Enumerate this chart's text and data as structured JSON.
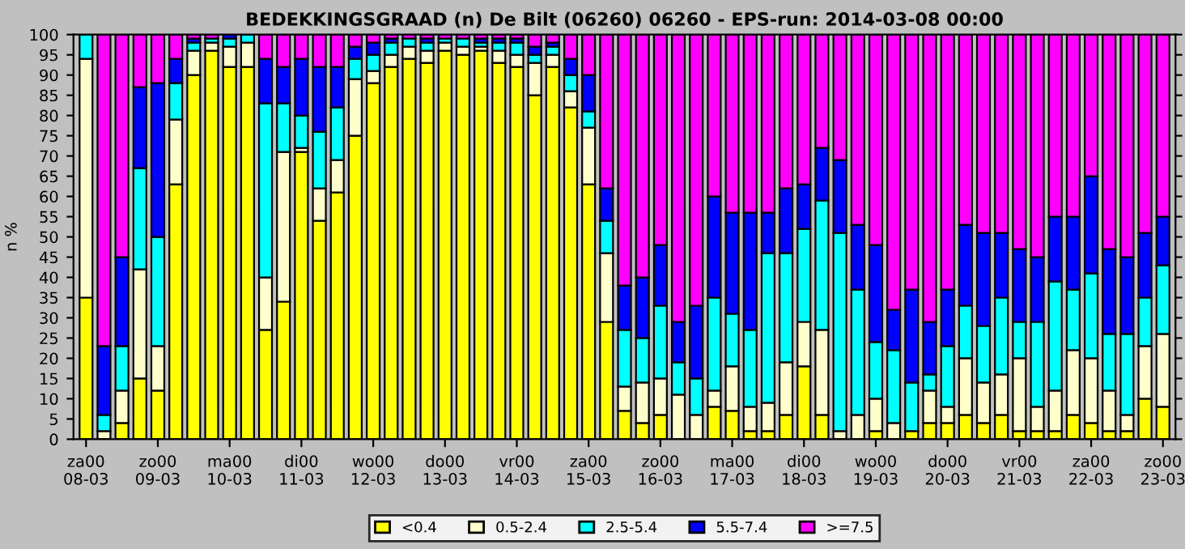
{
  "chart_data": {
    "type": "bar",
    "title": "BEDEKKINGSGRAAD (n) De Bilt (06260) 06260 - EPS-run: 2014-03-08 00:00",
    "ylabel": "n %",
    "stacked": true,
    "legend": "bottom",
    "categories": [
      "za00\n08-03",
      null,
      null,
      null,
      "zo00\n09-03",
      null,
      null,
      null,
      "ma00\n10-03",
      null,
      null,
      null,
      "di00\n11-03",
      null,
      null,
      null,
      "wo00\n12-03",
      null,
      null,
      null,
      "do00\n13-03",
      null,
      null,
      null,
      "vr00\n14-03",
      null,
      null,
      null,
      "za00\n15-03",
      null,
      null,
      null,
      "zo00\n16-03",
      null,
      null,
      null,
      "ma00\n17-03",
      null,
      null,
      null,
      "di00\n18-03",
      null,
      null,
      null,
      "wo00\n19-03",
      null,
      null,
      null,
      "do00\n20-03",
      null,
      null,
      null,
      "vr00\n21-03",
      null,
      null,
      null,
      "za00\n22-03",
      null,
      null,
      null,
      "zo00\n23-03"
    ],
    "ylim": [
      0,
      100
    ],
    "yticks": [
      0,
      5,
      10,
      15,
      20,
      25,
      30,
      35,
      40,
      45,
      50,
      55,
      60,
      65,
      70,
      75,
      80,
      85,
      90,
      95,
      100
    ],
    "series": [
      {
        "name": "<0.4",
        "color": "#ffff00",
        "values": [
          35,
          0,
          4,
          15,
          12,
          63,
          90,
          96,
          92,
          92,
          27,
          34,
          71,
          54,
          61,
          75,
          88,
          92,
          94,
          93,
          96,
          95,
          96,
          93,
          92,
          85,
          92,
          82,
          63,
          29,
          7,
          4,
          6,
          0,
          0,
          8,
          7,
          2,
          2,
          6,
          18,
          6,
          0,
          0,
          2,
          0,
          2,
          4,
          4,
          6,
          4,
          6,
          2,
          2,
          2,
          6,
          4,
          2,
          2,
          10,
          8
        ]
      },
      {
        "name": "0.5-2.4",
        "color": "#ffffcc",
        "values": [
          59,
          2,
          8,
          27,
          11,
          16,
          6,
          2,
          5,
          6,
          13,
          37,
          1,
          8,
          8,
          14,
          3,
          3,
          3,
          3,
          2,
          2,
          1,
          3,
          3,
          8,
          3,
          4,
          14,
          17,
          6,
          10,
          9,
          11,
          6,
          4,
          11,
          6,
          7,
          13,
          11,
          21,
          2,
          6,
          8,
          4,
          0,
          8,
          4,
          14,
          10,
          10,
          18,
          6,
          10,
          16,
          16,
          10,
          4,
          13,
          18
        ]
      },
      {
        "name": "2.5-5.4",
        "color": "#00ffff",
        "values": [
          6,
          4,
          11,
          25,
          27,
          9,
          2,
          1,
          2,
          2,
          43,
          12,
          8,
          14,
          13,
          5,
          4,
          3,
          2,
          2,
          1,
          2,
          1,
          2,
          3,
          2,
          2,
          4,
          4,
          8,
          14,
          11,
          18,
          8,
          9,
          23,
          13,
          19,
          37,
          27,
          23,
          32,
          49,
          31,
          14,
          18,
          12,
          4,
          15,
          13,
          14,
          19,
          9,
          21,
          27,
          15,
          21,
          14,
          20,
          12,
          17
        ]
      },
      {
        "name": "5.5-7.4",
        "color": "#0000ff",
        "values": [
          0,
          17,
          22,
          20,
          38,
          6,
          1,
          0,
          1,
          0,
          11,
          9,
          14,
          16,
          10,
          3,
          3,
          1,
          0,
          1,
          0,
          0,
          1,
          1,
          1,
          2,
          1,
          4,
          9,
          8,
          11,
          15,
          15,
          10,
          18,
          25,
          25,
          29,
          10,
          16,
          11,
          13,
          18,
          16,
          24,
          10,
          23,
          13,
          14,
          20,
          23,
          16,
          18,
          16,
          16,
          18,
          24,
          21,
          19,
          16,
          12
        ]
      },
      {
        "name": ">=7.5",
        "color": "#ff00ff",
        "values": [
          0,
          77,
          55,
          13,
          12,
          6,
          1,
          1,
          0,
          0,
          6,
          8,
          6,
          8,
          8,
          3,
          2,
          1,
          1,
          1,
          1,
          1,
          1,
          1,
          1,
          3,
          2,
          6,
          10,
          38,
          62,
          60,
          52,
          71,
          67,
          40,
          44,
          44,
          44,
          38,
          37,
          28,
          31,
          47,
          52,
          68,
          63,
          71,
          63,
          47,
          49,
          49,
          53,
          55,
          45,
          45,
          35,
          53,
          55,
          49,
          45
        ]
      }
    ]
  }
}
